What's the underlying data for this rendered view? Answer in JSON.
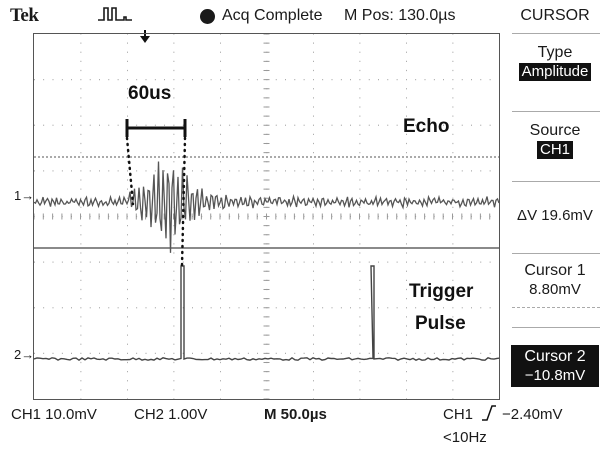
{
  "header": {
    "brand": "Tek",
    "trigger_icon": "trigger-pulse-icon",
    "acq_status": "Acq Complete",
    "mpos": "M Pos: 130.0µs"
  },
  "screen": {
    "channel_markers": {
      "ch1": "1→",
      "ch2": "2→"
    },
    "annotations": {
      "pulse_width": "60us",
      "echo": "Echo",
      "trigger_line1": "Trigger",
      "trigger_line2": "Pulse"
    }
  },
  "menu": {
    "title": "CURSOR",
    "type_label": "Type",
    "type_value": "Amplitude",
    "source_label": "Source",
    "source_value": "CH1",
    "delta": "ΔV 19.6mV",
    "cursor1_label": "Cursor 1",
    "cursor1_value": "8.80mV",
    "cursor2_label": "Cursor 2",
    "cursor2_value": "−10.8mV"
  },
  "status": {
    "ch1_scale": "CH1  10.0mV",
    "ch2_scale": "CH2  1.00V",
    "timebase": "M 50.0µs",
    "trigger_source": "CH1",
    "trigger_level": "−2.40mV",
    "coupling": "<10Hz"
  }
}
